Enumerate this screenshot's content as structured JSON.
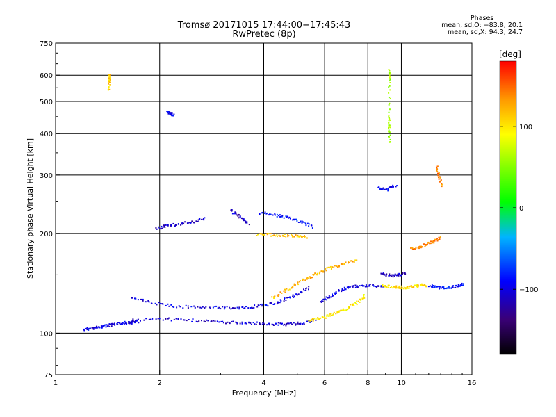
{
  "chart_data": {
    "type": "scatter",
    "title": "Tromsø 20171015 17:44:00−17:45:43",
    "subtitle": "RwPretec (8p)",
    "xlabel": "Frequency [MHz]",
    "ylabel": "Stationary phase Virtual Height [km]",
    "x_scale": "log",
    "y_scale": "log",
    "xlim": [
      1,
      16
    ],
    "ylim": [
      75,
      750
    ],
    "x_ticks": [
      "1",
      "2",
      "4",
      "6",
      "8",
      "10",
      "16"
    ],
    "y_ticks": [
      "75",
      "100",
      "200",
      "300",
      "400",
      "500",
      "600",
      "750"
    ],
    "grid_x": [
      1,
      2,
      4,
      6,
      8,
      10,
      16
    ],
    "grid_y": [
      100,
      200,
      300,
      400,
      500,
      600
    ],
    "colorbar": {
      "label": "[deg]",
      "ticks": [
        "100",
        "0",
        "−100"
      ],
      "tick_values": [
        100,
        0,
        -100
      ],
      "range": [
        -180,
        180
      ]
    },
    "stats": {
      "header": "Phases",
      "line1": "mean, sd,O: −83.8, 20.1",
      "line2": "mean, sd,X:  94.3, 24.7"
    },
    "traces": [
      {
        "x": [
          1.2,
          1.28,
          1.34,
          1.42,
          1.5,
          1.58,
          1.65,
          1.72
        ],
        "y": [
          103,
          104,
          105,
          106,
          107,
          108,
          108,
          109
        ],
        "phase": -100
      },
      {
        "x": [
          1.65,
          2.0,
          2.4,
          2.8,
          3.2,
          3.6,
          4.0,
          4.4,
          4.8,
          5.2,
          5.6
        ],
        "y": [
          110,
          111,
          110,
          109,
          108,
          108,
          107,
          107,
          107,
          108,
          110
        ],
        "phase": -105
      },
      {
        "x": [
          1.65,
          1.9,
          2.2,
          2.6,
          3.0,
          3.4,
          3.8,
          4.2,
          4.6,
          5.0,
          5.4
        ],
        "y": [
          128,
          124,
          121,
          120,
          120,
          120,
          121,
          123,
          127,
          132,
          138
        ],
        "phase": -100
      },
      {
        "x": [
          1.95,
          2.1,
          2.3,
          2.5,
          2.7
        ],
        "y": [
          208,
          212,
          215,
          218,
          222
        ],
        "phase": -110
      },
      {
        "x": [
          3.2,
          3.4,
          3.6
        ],
        "y": [
          235,
          225,
          215
        ],
        "phase": -110
      },
      {
        "x": [
          3.9,
          4.3,
          4.7,
          5.1,
          5.5
        ],
        "y": [
          232,
          228,
          224,
          218,
          210
        ],
        "phase": -85
      },
      {
        "x": [
          3.8,
          4.2,
          4.6,
          5.0,
          5.3
        ],
        "y": [
          199,
          199,
          198,
          197,
          196
        ],
        "phase": 115
      },
      {
        "x": [
          4.2,
          4.6,
          5.0,
          5.4,
          5.8,
          6.2,
          6.8,
          7.4
        ],
        "y": [
          128,
          135,
          142,
          148,
          153,
          158,
          162,
          167
        ],
        "phase": 120
      },
      {
        "x": [
          5.4,
          5.8,
          6.2,
          6.6,
          7.0,
          7.4,
          7.8
        ],
        "y": [
          110,
          111,
          114,
          117,
          120,
          124,
          130
        ],
        "phase": 100
      },
      {
        "x": [
          5.8,
          6.2,
          6.6,
          7.0,
          7.6,
          8.2,
          8.8
        ],
        "y": [
          125,
          130,
          135,
          138,
          140,
          140,
          139
        ],
        "phase": -100
      },
      {
        "x": [
          8.8,
          9.3,
          9.8,
          10.3,
          10.8,
          11.3,
          11.8
        ],
        "y": [
          140,
          139,
          138,
          138,
          139,
          140,
          140
        ],
        "phase": 105
      },
      {
        "x": [
          10.6,
          11.2,
          11.8,
          12.4,
          12.9
        ],
        "y": [
          180,
          183,
          186,
          190,
          195
        ],
        "phase": 140
      },
      {
        "x": [
          12.0,
          12.8,
          13.6,
          14.4,
          15.0
        ],
        "y": [
          140,
          138,
          138,
          139,
          141
        ],
        "phase": -90
      },
      {
        "x": [
          8.7,
          9.2,
          9.7,
          10.2
        ],
        "y": [
          152,
          150,
          150,
          152
        ],
        "phase": -110
      },
      {
        "x": [
          2.1,
          2.14,
          2.18
        ],
        "y": [
          470,
          462,
          458
        ],
        "phase": -90
      },
      {
        "x": [
          1.42,
          1.43,
          1.42
        ],
        "y": [
          610,
          580,
          545
        ],
        "phase": 110
      },
      {
        "x": [
          9.2,
          9.2,
          9.2,
          9.2,
          9.2
        ],
        "y": [
          630,
          575,
          450,
          420,
          380
        ],
        "phase": 60
      },
      {
        "x": [
          8.5,
          9.0,
          9.6
        ],
        "y": [
          275,
          272,
          280
        ],
        "phase": -100
      },
      {
        "x": [
          12.6,
          12.8,
          13.0
        ],
        "y": [
          320,
          300,
          280
        ],
        "phase": 140
      }
    ]
  }
}
